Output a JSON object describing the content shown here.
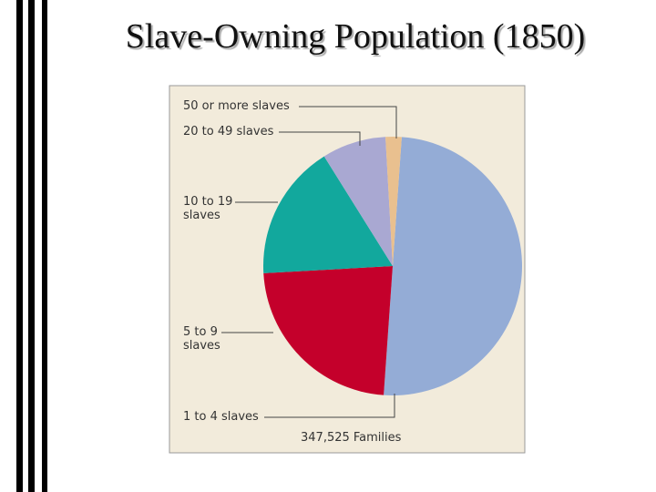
{
  "chart_data": {
    "type": "pie",
    "title": "Slave-Owning Population (1850)",
    "categories": [
      "1 to 4 slaves",
      "5 to 9 slaves",
      "10 to 19 slaves",
      "20 to 49 slaves",
      "50 or more slaves"
    ],
    "values": [
      50,
      23,
      17,
      8,
      2
    ],
    "colors": [
      "#94acd6",
      "#c4002b",
      "#12a89d",
      "#a9a8d2",
      "#e9c08f"
    ],
    "annotation": "347,525 Families"
  }
}
